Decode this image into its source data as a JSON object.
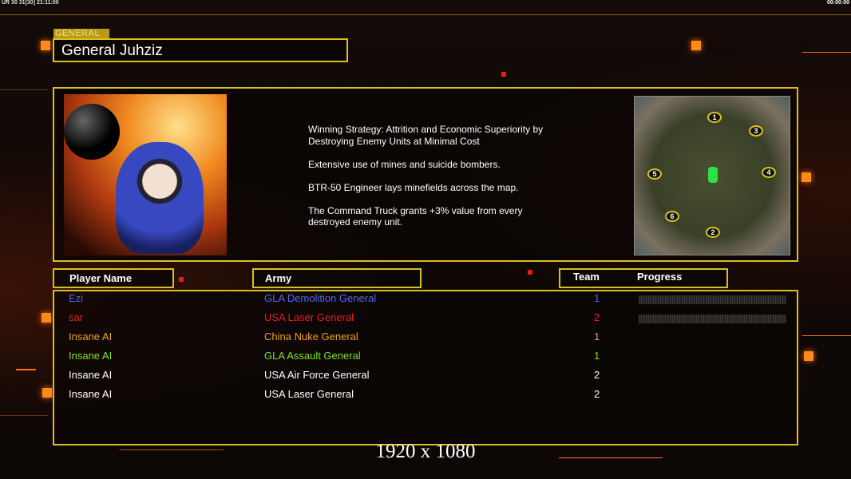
{
  "status_bar": {
    "text": "UR 30 31[30] 21:11:00",
    "clock": "00:00:00"
  },
  "header": {
    "tab_label": "GENERAL",
    "title": "General Juhziz"
  },
  "description": [
    "Winning Strategy: Attrition and Economic Superiority by\n Destroying Enemy Units at Minimal Cost",
    "Extensive use of mines and suicide bombers.",
    "BTR-50 Engineer lays minefields across the map.",
    "The Command Truck grants +3% value from every\n destroyed enemy unit."
  ],
  "map": {
    "start_positions": [
      "1",
      "2",
      "3",
      "4",
      "5",
      "6"
    ]
  },
  "columns": {
    "player": "Player Name",
    "army": "Army",
    "team": "Team",
    "progress": "Progress"
  },
  "players": [
    {
      "name": "Ezi",
      "army": "GLA Demolition General",
      "team": "1",
      "color": "#4a6cf0",
      "progress": 0
    },
    {
      "name": "sar",
      "army": "USA Laser General",
      "team": "2",
      "color": "#e8201c",
      "progress": 0
    },
    {
      "name": "Insane AI",
      "army": "China Nuke General",
      "team": "1",
      "color": "#f0a020"
    },
    {
      "name": "Insane AI",
      "army": "GLA Assault General",
      "team": "1",
      "color": "#80e020"
    },
    {
      "name": "Insane AI",
      "army": "USA Air Force General",
      "team": "2",
      "color": "#ffffff"
    },
    {
      "name": "Insane AI",
      "army": "USA Laser General",
      "team": "2",
      "color": "#ffffff"
    }
  ],
  "resolution": "1920 x 1080",
  "colors": {
    "frame": "#d8c020",
    "accent": "#ff8a1a"
  }
}
